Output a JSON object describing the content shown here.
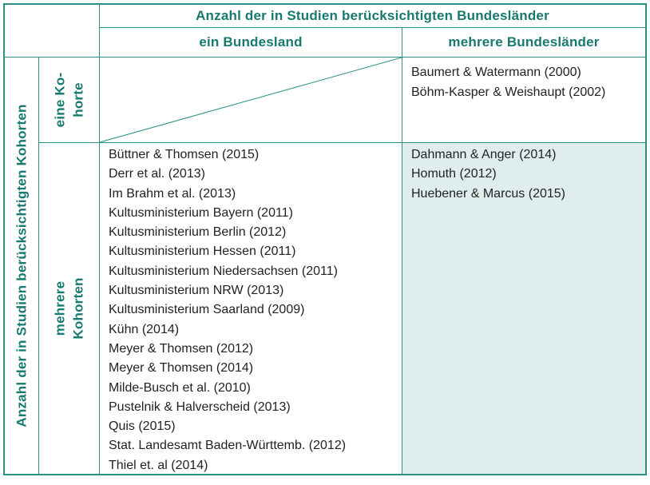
{
  "colors": {
    "teal_text": "#17796f",
    "teal_border": "#2b9187",
    "body_text": "#222222",
    "highlight_bg": "#dfeeec"
  },
  "table": {
    "column_group_title": "Anzahl der in Studien berücksichtigten Bundesländer",
    "column_headers": [
      "ein Bundesland",
      "mehrere Bundesländer"
    ],
    "row_group_title": "Anzahl der in Studien berücksichtigten Kohorten",
    "row_headers": [
      {
        "line1": "eine Ko-",
        "line2": "horte"
      },
      {
        "line1": "mehrere",
        "line2": "Kohorten"
      }
    ],
    "cells": {
      "one_cohort_one_state": [],
      "one_cohort_multi_state": [
        "Baumert & Watermann (2000)",
        "Böhm-Kasper & Weishaupt (2002)"
      ],
      "multi_cohort_one_state": [
        "Büttner & Thomsen (2015)",
        "Derr et al. (2013)",
        "Im Brahm et al. (2013)",
        "Kultusministerium Bayern (2011)",
        "Kultusministerium Berlin (2012)",
        "Kultusministerium Hessen (2011)",
        "Kultusministerium Niedersachsen (2011)",
        "Kultusministerium NRW (2013)",
        "Kultusministerium Saarland (2009)",
        "Kühn (2014)",
        "Meyer & Thomsen (2012)",
        "Meyer & Thomsen (2014)",
        "Milde-Busch et al. (2010)",
        "Pustelnik & Halverscheid (2013)",
        "Quis (2015)",
        "Stat. Landesamt Baden-Württemb. (2012)",
        "Thiel et. al (2014)"
      ],
      "multi_cohort_multi_state": [
        "Dahmann & Anger (2014)",
        "Homuth (2012)",
        "Huebener & Marcus (2015)"
      ]
    }
  }
}
